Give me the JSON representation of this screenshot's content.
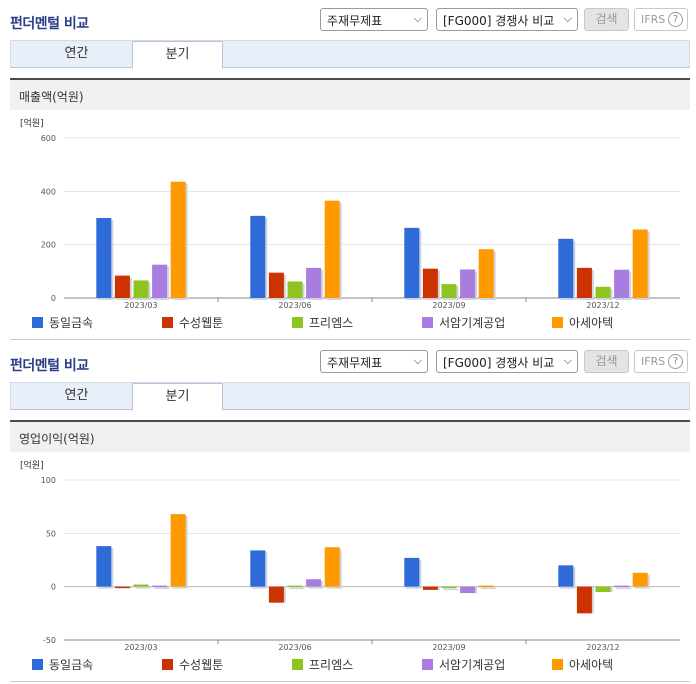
{
  "panels": [
    {
      "title": "펀더멘털 비교",
      "select_statement": "주재무제표",
      "select_group": "[FG000] 경쟁사 비교",
      "search_label": "검색",
      "ifrs_label": "IFRS",
      "ifrs_help": "?",
      "tabs": [
        "연간",
        "분기"
      ],
      "active_tab": "분기",
      "chart_title": "매출액(억원)",
      "unit": "[억원]"
    },
    {
      "title": "펀더멘털 비교",
      "select_statement": "주재무제표",
      "select_group": "[FG000] 경쟁사 비교",
      "search_label": "검색",
      "ifrs_label": "IFRS",
      "ifrs_help": "?",
      "tabs": [
        "연간",
        "분기"
      ],
      "active_tab": "분기",
      "chart_title": "영업이익(억원)",
      "unit": "[억원]"
    }
  ],
  "colors": {
    "series": [
      "#2e6bd9",
      "#cc3300",
      "#8fc31f",
      "#a97ce0",
      "#ff9900"
    ],
    "grid": "#e4e4e4",
    "axis": "#8a8a8a"
  },
  "chart_data": [
    {
      "type": "bar",
      "title": "매출액(억원)",
      "ylabel": "[억원]",
      "categories": [
        "2023/03",
        "2023/06",
        "2023/09",
        "2023/12"
      ],
      "ylim": [
        0,
        600
      ],
      "yticks": [
        0,
        200,
        400,
        600
      ],
      "grid": true,
      "legend": "bottom",
      "series": [
        {
          "name": "동일금속",
          "values": [
            300,
            308,
            263,
            222
          ]
        },
        {
          "name": "수성웹툰",
          "values": [
            84,
            95,
            110,
            113
          ]
        },
        {
          "name": "프리엠스",
          "values": [
            66,
            62,
            52,
            42
          ]
        },
        {
          "name": "서암기계공업",
          "values": [
            125,
            113,
            107,
            106
          ]
        },
        {
          "name": "아세아텍",
          "values": [
            436,
            365,
            183,
            257
          ]
        }
      ]
    },
    {
      "type": "bar",
      "title": "영업이익(억원)",
      "ylabel": "[억원]",
      "categories": [
        "2023/03",
        "2023/06",
        "2023/09",
        "2023/12"
      ],
      "ylim": [
        -50,
        100
      ],
      "yticks": [
        -50,
        0,
        50,
        100
      ],
      "grid": true,
      "legend": "bottom",
      "series": [
        {
          "name": "동일금속",
          "values": [
            38,
            34,
            27,
            20
          ]
        },
        {
          "name": "수성웹툰",
          "values": [
            -1,
            -15,
            -3,
            -25
          ]
        },
        {
          "name": "프리엠스",
          "values": [
            2,
            1,
            0,
            -5
          ]
        },
        {
          "name": "서암기계공업",
          "values": [
            1,
            7,
            -6,
            1
          ]
        },
        {
          "name": "아세아텍",
          "values": [
            68,
            37,
            1,
            13
          ]
        }
      ]
    }
  ]
}
